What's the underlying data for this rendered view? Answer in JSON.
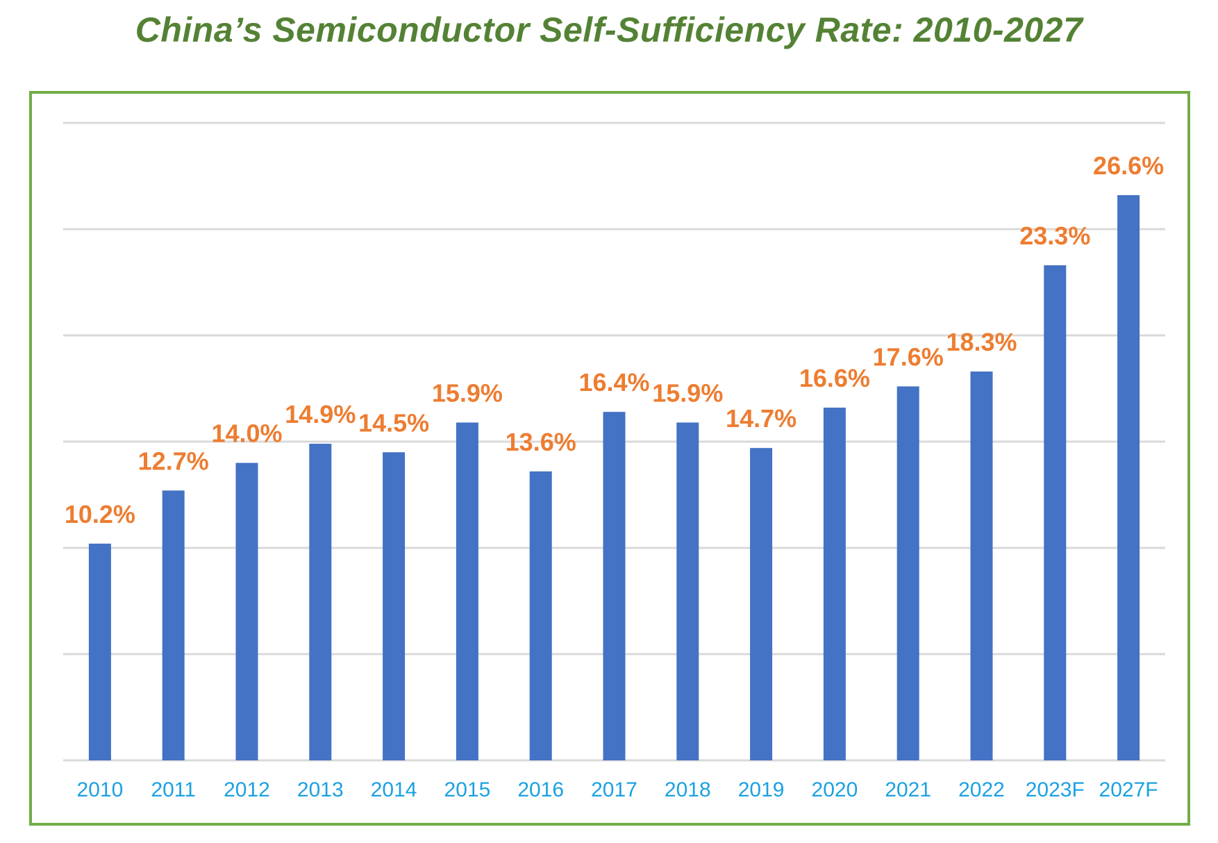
{
  "chart_data": {
    "type": "bar",
    "title": "China’s Semiconductor Self-Sufficiency Rate: 2010-2027",
    "xlabel": "",
    "ylabel": "",
    "categories": [
      "2010",
      "2011",
      "2012",
      "2013",
      "2014",
      "2015",
      "2016",
      "2017",
      "2018",
      "2019",
      "2020",
      "2021",
      "2022",
      "2023F",
      "2027F"
    ],
    "values": [
      10.2,
      12.7,
      14.0,
      14.9,
      14.5,
      15.9,
      13.6,
      16.4,
      15.9,
      14.7,
      16.6,
      17.6,
      18.3,
      23.3,
      26.6
    ],
    "data_labels": [
      "10.2%",
      "12.7%",
      "14.0%",
      "14.9%",
      "14.5%",
      "15.9%",
      "13.6%",
      "16.4%",
      "15.9%",
      "14.7%",
      "16.6%",
      "17.6%",
      "18.3%",
      "23.3%",
      "26.6%"
    ],
    "ylim": [
      0,
      30
    ],
    "gridline_step": 5,
    "grid": true,
    "legend": "none",
    "colors": {
      "bar": "#4472C4",
      "data_label": "#ED7D31",
      "tick_label": "#1BA1E2",
      "title": "#548235",
      "frame": "#70AD47",
      "grid": "#d9d9d9"
    }
  }
}
